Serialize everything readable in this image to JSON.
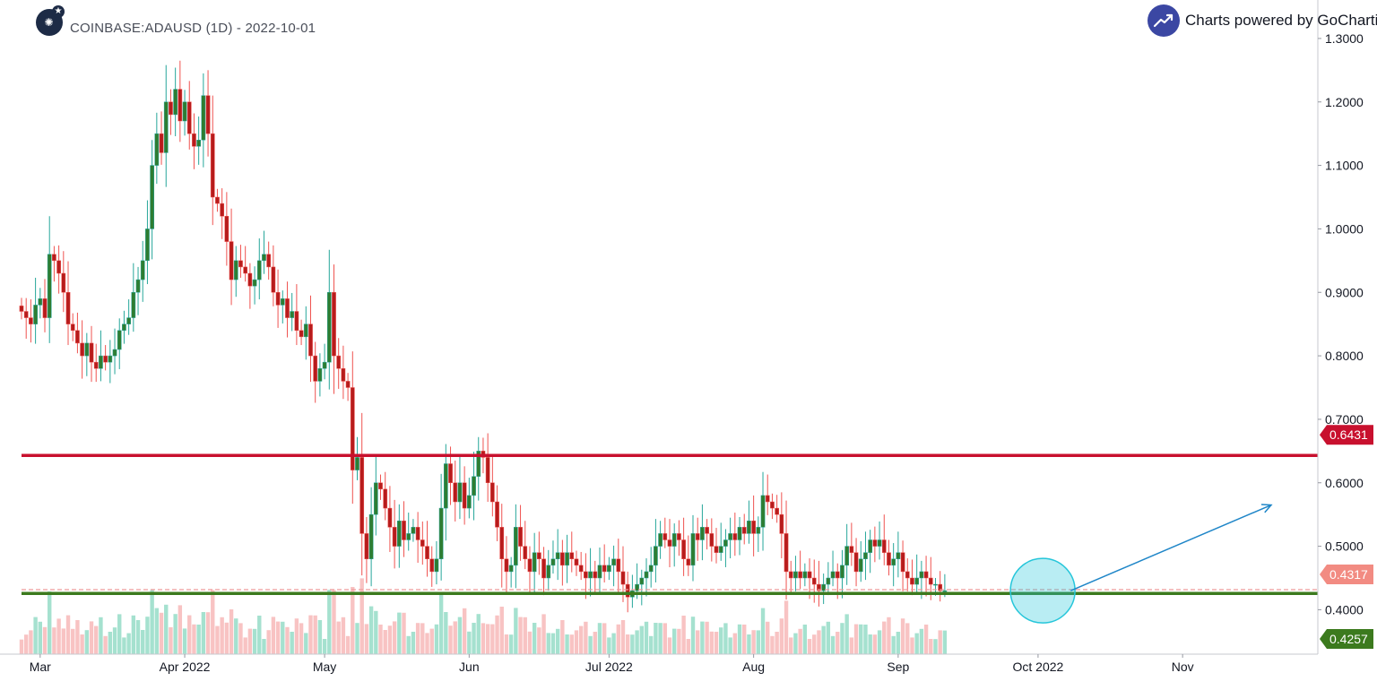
{
  "header": {
    "symbol": "COINBASE:ADAUSD (1D) - 2022-10-01",
    "brand": "Charts powered by GoCharting"
  },
  "colors": {
    "up": "#26a69a",
    "down": "#ef5350",
    "candle_up_fill": "#2e7d32",
    "candle_down_fill": "#b71c1c",
    "resistance": "#c8102e",
    "support": "#3c7a1e",
    "current": "#ef9a9a",
    "circle": "#26c6da",
    "arrow": "#1f86c8",
    "brand_icon": "#3b47a3"
  },
  "chart_data": {
    "type": "candlestick",
    "title": "COINBASE:ADAUSD (1D) - 2022-10-01",
    "x_range": [
      "2022-02-25",
      "2022-11-30"
    ],
    "y_range": [
      0.33,
      1.29
    ],
    "x_ticks": [
      {
        "date": "2022-03-01",
        "label": "Mar"
      },
      {
        "date": "2022-04-01",
        "label": "Apr 2022"
      },
      {
        "date": "2022-05-01",
        "label": "May"
      },
      {
        "date": "2022-06-01",
        "label": "Jun"
      },
      {
        "date": "2022-07-01",
        "label": "Jul 2022"
      },
      {
        "date": "2022-08-01",
        "label": "Aug"
      },
      {
        "date": "2022-09-01",
        "label": "Sep"
      },
      {
        "date": "2022-10-01",
        "label": "Oct 2022"
      },
      {
        "date": "2022-11-01",
        "label": "Nov"
      }
    ],
    "y_ticks": [
      "0.4000",
      "0.5000",
      "0.6000",
      "0.7000",
      "0.8000",
      "0.9000",
      "1.0000",
      "1.1000",
      "1.2000",
      "1.3000"
    ],
    "start_date": "2022-02-25",
    "closes": [
      0.87,
      0.86,
      0.85,
      0.88,
      0.89,
      0.86,
      0.96,
      0.95,
      0.93,
      0.9,
      0.85,
      0.84,
      0.82,
      0.8,
      0.82,
      0.79,
      0.78,
      0.8,
      0.79,
      0.8,
      0.81,
      0.84,
      0.85,
      0.86,
      0.9,
      0.92,
      0.95,
      1.0,
      1.1,
      1.15,
      1.12,
      1.2,
      1.18,
      1.22,
      1.17,
      1.2,
      1.15,
      1.13,
      1.14,
      1.21,
      1.15,
      1.05,
      1.04,
      1.02,
      0.98,
      0.92,
      0.95,
      0.94,
      0.93,
      0.91,
      0.92,
      0.95,
      0.96,
      0.94,
      0.9,
      0.88,
      0.89,
      0.86,
      0.87,
      0.84,
      0.83,
      0.85,
      0.8,
      0.76,
      0.78,
      0.79,
      0.9,
      0.8,
      0.78,
      0.76,
      0.75,
      0.62,
      0.64,
      0.52,
      0.48,
      0.55,
      0.6,
      0.59,
      0.56,
      0.53,
      0.5,
      0.54,
      0.51,
      0.52,
      0.53,
      0.51,
      0.5,
      0.48,
      0.46,
      0.48,
      0.56,
      0.63,
      0.6,
      0.57,
      0.6,
      0.56,
      0.58,
      0.61,
      0.65,
      0.64,
      0.6,
      0.57,
      0.53,
      0.48,
      0.46,
      0.47,
      0.53,
      0.5,
      0.48,
      0.46,
      0.49,
      0.48,
      0.45,
      0.47,
      0.48,
      0.49,
      0.47,
      0.49,
      0.48,
      0.47,
      0.46,
      0.45,
      0.46,
      0.45,
      0.47,
      0.46,
      0.47,
      0.48,
      0.46,
      0.44,
      0.42,
      0.43,
      0.44,
      0.45,
      0.46,
      0.47,
      0.5,
      0.52,
      0.51,
      0.5,
      0.52,
      0.51,
      0.48,
      0.47,
      0.52,
      0.51,
      0.53,
      0.52,
      0.5,
      0.49,
      0.5,
      0.51,
      0.52,
      0.51,
      0.53,
      0.52,
      0.54,
      0.52,
      0.53,
      0.58,
      0.57,
      0.56,
      0.55,
      0.52,
      0.46,
      0.45,
      0.46,
      0.45,
      0.46,
      0.45,
      0.44,
      0.43,
      0.44,
      0.45,
      0.46,
      0.45,
      0.47,
      0.5,
      0.49,
      0.46,
      0.48,
      0.49,
      0.51,
      0.5,
      0.51,
      0.49,
      0.47,
      0.48,
      0.49,
      0.46,
      0.45,
      0.44,
      0.45,
      0.46,
      0.45,
      0.44,
      0.44,
      0.43,
      0.43
    ],
    "levels": [
      {
        "name": "resistance",
        "value": 0.6431,
        "label": "0.6431"
      },
      {
        "name": "support",
        "value": 0.4257,
        "label": "0.4257"
      },
      {
        "name": "last-price",
        "value": 0.4317,
        "label": "0.4317"
      }
    ],
    "annotations": {
      "circle_center": {
        "date": "2022-10-02",
        "value": 0.43
      },
      "arrow": {
        "from": {
          "date": "2022-10-08",
          "value": 0.43
        },
        "to": {
          "date": "2022-11-20",
          "value": 0.565
        }
      }
    },
    "volume_shown": true,
    "grid": false
  }
}
